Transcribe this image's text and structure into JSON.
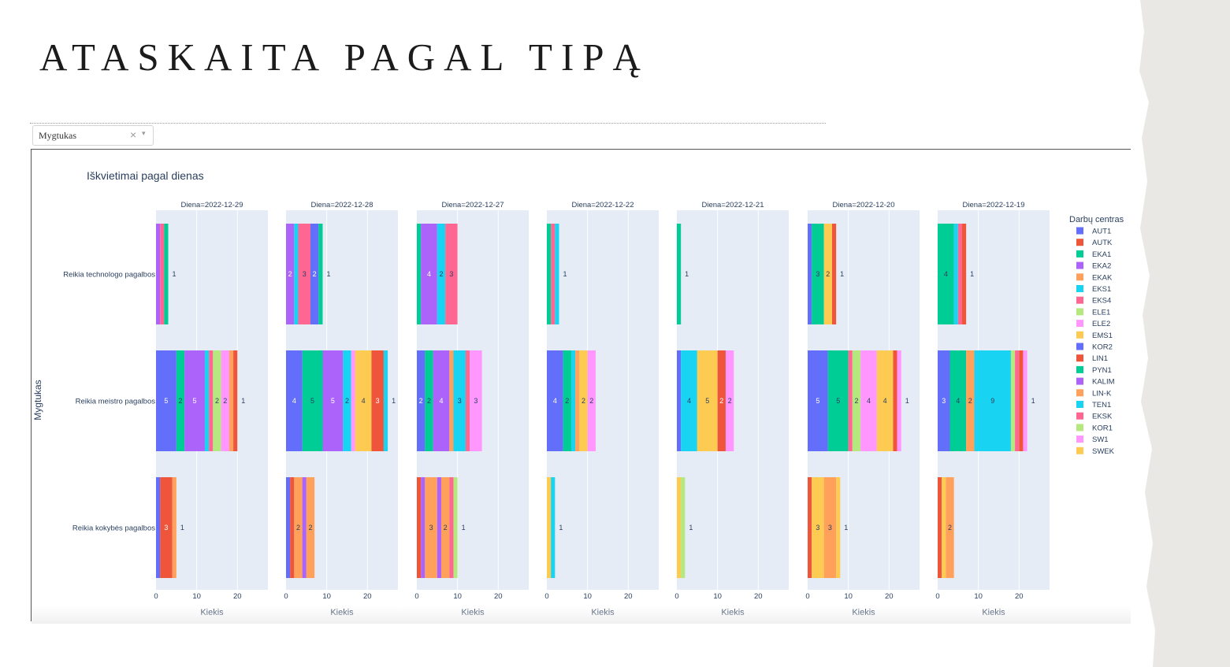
{
  "page": {
    "title": "ATASKAITA PAGAL TIPĄ",
    "dropdown": {
      "value": "Mygtukas",
      "clear_icon": "×",
      "arrow_icon": "▾"
    }
  },
  "colors": {
    "AUT1": "#636efa",
    "AUTK": "#EF553B",
    "EKA1": "#00cc96",
    "EKA2": "#ab63fa",
    "EKAK": "#FFA15A",
    "EKS1": "#19d3f3",
    "EKS4": "#FF6692",
    "ELE1": "#B6E880",
    "ELE2": "#FF97FF",
    "EMS1": "#FECB52",
    "KOR2": "#636efa",
    "LIN1": "#EF553B",
    "PYN1": "#00cc96",
    "KALIM": "#ab63fa",
    "LIN-K": "#FFA15A",
    "TEN1": "#19d3f3",
    "EKSK": "#FF6692",
    "KOR1": "#B6E880",
    "SW1": "#FF97FF",
    "SWEK": "#FECB52"
  },
  "chart_data": {
    "type": "bar",
    "orientation": "horizontal",
    "barmode": "stack",
    "title": "Iškvietimai pagal dienas",
    "ylabel": "Mygtukas",
    "xlabel": "Kiekis",
    "xlim": [
      0,
      27.5
    ],
    "xticks": [
      0,
      10,
      20
    ],
    "categories": [
      "Reikia technologo pagalbos",
      "Reikia meistro pagalbos",
      "Reikia kokybės pagalbos"
    ],
    "legend_title": "Darbų centras",
    "legend_position": "right",
    "legend": [
      "AUT1",
      "AUTK",
      "EKA1",
      "EKA2",
      "EKAK",
      "EKS1",
      "EKS4",
      "ELE1",
      "ELE2",
      "EMS1",
      "KOR2",
      "LIN1",
      "PYN1",
      "KALIM",
      "LIN-K",
      "TEN1",
      "EKSK",
      "KOR1",
      "SW1",
      "SWEK"
    ],
    "facets": [
      {
        "title": "Diena=2022-12-29",
        "rows": [
          [
            [
              "EKA2",
              1
            ],
            [
              "EKS4",
              1
            ],
            [
              "EKA1",
              1
            ]
          ],
          [
            [
              "AUT1",
              5
            ],
            [
              "EKA1",
              2
            ],
            [
              "EKA2",
              5
            ],
            [
              "EKS1",
              1
            ],
            [
              "EKS4",
              1
            ],
            [
              "ELE1",
              2
            ],
            [
              "ELE2",
              2
            ],
            [
              "EKAK",
              1
            ],
            [
              "AUTK",
              1
            ]
          ],
          [
            [
              "AUT1",
              1
            ],
            [
              "AUTK",
              3
            ],
            [
              "EKAK",
              1
            ]
          ]
        ]
      },
      {
        "title": "Diena=2022-12-28",
        "rows": [
          [
            [
              "EKA2",
              2
            ],
            [
              "EKS1",
              1
            ],
            [
              "EKS4",
              3
            ],
            [
              "AUT1",
              2
            ],
            [
              "EKA1",
              1
            ]
          ],
          [
            [
              "AUT1",
              4
            ],
            [
              "EKA1",
              5
            ],
            [
              "EKA2",
              5
            ],
            [
              "EKS1",
              2
            ],
            [
              "ELE2",
              1
            ],
            [
              "EMS1",
              4
            ],
            [
              "AUTK",
              3
            ],
            [
              "EKS1",
              1
            ]
          ],
          [
            [
              "AUT1",
              1
            ],
            [
              "AUTK",
              1
            ],
            [
              "EKAK",
              2
            ],
            [
              "EKA2",
              1
            ],
            [
              "EKAK",
              2
            ]
          ]
        ]
      },
      {
        "title": "Diena=2022-12-27",
        "rows": [
          [
            [
              "EKA1",
              1
            ],
            [
              "EKA2",
              4
            ],
            [
              "EKS1",
              2
            ],
            [
              "EKS4",
              3
            ]
          ],
          [
            [
              "AUT1",
              2
            ],
            [
              "EKA1",
              2
            ],
            [
              "EKA2",
              4
            ],
            [
              "EKAK",
              1
            ],
            [
              "EKS1",
              3
            ],
            [
              "EKS4",
              1
            ],
            [
              "ELE2",
              3
            ]
          ],
          [
            [
              "AUTK",
              1
            ],
            [
              "EKA2",
              1
            ],
            [
              "EKAK",
              3
            ],
            [
              "EKA2",
              1
            ],
            [
              "EKAK",
              2
            ],
            [
              "EKS4",
              1
            ],
            [
              "ELE1",
              1
            ]
          ]
        ]
      },
      {
        "title": "Diena=2022-12-22",
        "rows": [
          [
            [
              "EKA1",
              1
            ],
            [
              "EKS4",
              1
            ],
            [
              "EKS1",
              1
            ]
          ],
          [
            [
              "AUT1",
              4
            ],
            [
              "EKA1",
              2
            ],
            [
              "EKS1",
              1
            ],
            [
              "EKAK",
              1
            ],
            [
              "EMS1",
              2
            ],
            [
              "ELE2",
              2
            ]
          ],
          [
            [
              "EMS1",
              1
            ],
            [
              "EKS1",
              1
            ]
          ]
        ]
      },
      {
        "title": "Diena=2022-12-21",
        "rows": [
          [
            [
              "EKA1",
              1
            ]
          ],
          [
            [
              "AUT1",
              1
            ],
            [
              "EKS1",
              4
            ],
            [
              "EMS1",
              5
            ],
            [
              "AUTK",
              2
            ],
            [
              "ELE2",
              2
            ]
          ],
          [
            [
              "EMS1",
              1
            ],
            [
              "ELE1",
              1
            ]
          ]
        ]
      },
      {
        "title": "Diena=2022-12-20",
        "rows": [
          [
            [
              "AUT1",
              1
            ],
            [
              "EKA1",
              3
            ],
            [
              "EMS1",
              2
            ],
            [
              "AUTK",
              1
            ]
          ],
          [
            [
              "AUT1",
              5
            ],
            [
              "EKA1",
              5
            ],
            [
              "EKS4",
              1
            ],
            [
              "ELE1",
              2
            ],
            [
              "ELE2",
              4
            ],
            [
              "EMS1",
              4
            ],
            [
              "AUTK",
              1
            ],
            [
              "ELE2",
              1
            ]
          ],
          [
            [
              "AUTK",
              1
            ],
            [
              "EMS1",
              3
            ],
            [
              "EKAK",
              3
            ],
            [
              "EMS1",
              1
            ]
          ]
        ]
      },
      {
        "title": "Diena=2022-12-19",
        "rows": [
          [
            [
              "EKA1",
              4
            ],
            [
              "EKS1",
              1
            ],
            [
              "EKS4",
              1
            ],
            [
              "AUTK",
              1
            ]
          ],
          [
            [
              "AUT1",
              3
            ],
            [
              "EKA1",
              4
            ],
            [
              "EKAK",
              2
            ],
            [
              "EKS1",
              9
            ],
            [
              "ELE1",
              1
            ],
            [
              "EKS4",
              1
            ],
            [
              "AUTK",
              1
            ],
            [
              "ELE2",
              1
            ]
          ],
          [
            [
              "AUTK",
              1
            ],
            [
              "EMS1",
              1
            ],
            [
              "EKAK",
              2
            ]
          ]
        ]
      }
    ]
  }
}
